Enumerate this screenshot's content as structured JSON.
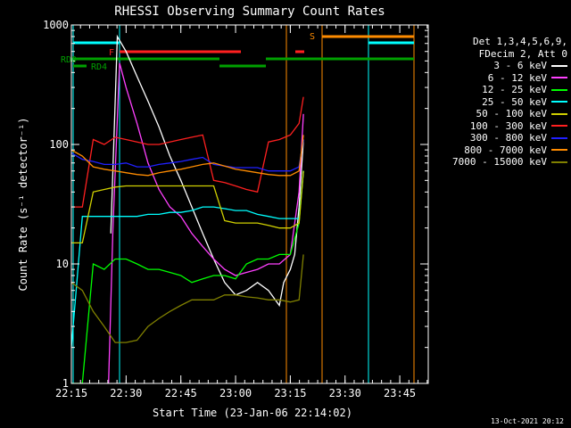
{
  "footer": {
    "date": "13-Oct-2021 20:12"
  },
  "legend": {
    "line1": "Det 1,3,4,5,6,9,",
    "line2": "FDecim 2, Att 0"
  },
  "chart_data": {
    "type": "line",
    "title": "RHESSI Observing Summary Count Rates",
    "xlabel": "Start Time (23-Jan-06 22:14:02)",
    "ylabel": "Count Rate (s⁻¹ detector⁻¹)",
    "yscale": "log",
    "ylim": [
      1,
      1000
    ],
    "xlim_minutes": [
      22.25,
      23.88
    ],
    "x_ticks": [
      {
        "label": "22:15",
        "t": 22.25
      },
      {
        "label": "22:30",
        "t": 22.5
      },
      {
        "label": "22:45",
        "t": 22.75
      },
      {
        "label": "23:00",
        "t": 23.0
      },
      {
        "label": "23:15",
        "t": 23.25
      },
      {
        "label": "23:30",
        "t": 23.5
      },
      {
        "label": "23:45",
        "t": 23.75
      }
    ],
    "y_ticks": [
      {
        "label": "1",
        "v": 1
      },
      {
        "label": "10",
        "v": 10
      },
      {
        "label": "100",
        "v": 100
      },
      {
        "label": "1000",
        "v": 1000
      }
    ],
    "flag_labels": [
      {
        "text": "F",
        "color": "#ff2020"
      },
      {
        "text": "S",
        "color": "#ff8c00"
      },
      {
        "text": "RD0",
        "color": "#00a000"
      },
      {
        "text": "RD4",
        "color": "#00a000"
      }
    ],
    "series": [
      {
        "name": "3 - 6 keV",
        "color": "#ffffff",
        "t": [
          22.43,
          22.46,
          22.5,
          22.55,
          22.6,
          22.65,
          22.7,
          22.75,
          22.8,
          22.85,
          22.9,
          22.95,
          23.0,
          23.05,
          23.1,
          23.15,
          23.2,
          23.22,
          23.25,
          23.27,
          23.29,
          23.31
        ],
        "v": [
          18,
          800,
          600,
          370,
          230,
          140,
          80,
          50,
          30,
          18,
          11,
          7,
          5.5,
          6,
          7,
          6,
          4.5,
          7,
          9,
          12,
          30,
          110
        ]
      },
      {
        "name": "6 - 12 keV",
        "color": "#ff40ff",
        "t": [
          22.42,
          22.44,
          22.47,
          22.5,
          22.55,
          22.6,
          22.65,
          22.7,
          22.75,
          22.8,
          22.85,
          22.9,
          22.95,
          23.0,
          23.05,
          23.1,
          23.15,
          23.2,
          23.25,
          23.29,
          23.31
        ],
        "v": [
          1,
          20,
          480,
          300,
          150,
          70,
          42,
          30,
          25,
          18,
          14,
          11,
          9,
          8,
          8.5,
          9,
          10,
          10,
          12,
          40,
          180
        ]
      },
      {
        "name": "12 - 25 keV",
        "color": "#00ff00",
        "t": [
          22.25,
          22.3,
          22.35,
          22.4,
          22.45,
          22.5,
          22.55,
          22.6,
          22.65,
          22.7,
          22.75,
          22.8,
          22.85,
          22.9,
          22.95,
          23.0,
          23.05,
          23.1,
          23.15,
          23.2,
          23.25,
          23.29,
          23.31
        ],
        "v": [
          1,
          1,
          10,
          9,
          11,
          11,
          10,
          9,
          9,
          8.5,
          8,
          7,
          7.5,
          8,
          8,
          7.5,
          10,
          11,
          11,
          12,
          12,
          22,
          60
        ]
      },
      {
        "name": "25 - 50 keV",
        "color": "#00ffff",
        "t": [
          22.25,
          22.3,
          22.35,
          22.4,
          22.45,
          22.5,
          22.55,
          22.6,
          22.65,
          22.7,
          22.75,
          22.8,
          22.85,
          22.9,
          22.95,
          23.0,
          23.05,
          23.1,
          23.15,
          23.2,
          23.25,
          23.29,
          23.31
        ],
        "v": [
          2,
          25,
          25,
          25,
          25,
          25,
          25,
          26,
          26,
          27,
          27,
          28,
          30,
          30,
          29,
          28,
          28,
          26,
          25,
          24,
          24,
          24,
          60
        ]
      },
      {
        "name": "50 - 100 keV",
        "color": "#d0d000",
        "t": [
          22.25,
          22.3,
          22.35,
          22.4,
          22.45,
          22.5,
          22.55,
          22.6,
          22.65,
          22.7,
          22.75,
          22.8,
          22.85,
          22.9,
          22.95,
          23.0,
          23.05,
          23.1,
          23.15,
          23.2,
          23.25,
          23.29,
          23.31
        ],
        "v": [
          15,
          15,
          40,
          42,
          44,
          45,
          45,
          45,
          45,
          45,
          45,
          45,
          45,
          45,
          23,
          22,
          22,
          22,
          21,
          20,
          20,
          22,
          60
        ]
      },
      {
        "name": "100 - 300 keV",
        "color": "#ff2020",
        "t": [
          22.25,
          22.3,
          22.35,
          22.4,
          22.45,
          22.5,
          22.55,
          22.6,
          22.65,
          22.7,
          22.75,
          22.8,
          22.85,
          22.9,
          22.95,
          23.0,
          23.05,
          23.1,
          23.15,
          23.2,
          23.25,
          23.29,
          23.31
        ],
        "v": [
          30,
          30,
          110,
          100,
          115,
          110,
          105,
          100,
          100,
          105,
          110,
          115,
          120,
          50,
          48,
          45,
          42,
          40,
          105,
          110,
          120,
          150,
          250
        ]
      },
      {
        "name": "300 - 800 keV",
        "color": "#2020ff",
        "t": [
          22.25,
          22.3,
          22.35,
          22.4,
          22.45,
          22.5,
          22.55,
          22.6,
          22.65,
          22.7,
          22.75,
          22.8,
          22.85,
          22.9,
          22.95,
          23.0,
          23.05,
          23.1,
          23.15,
          23.2,
          23.25,
          23.29,
          23.31
        ],
        "v": [
          85,
          75,
          72,
          68,
          68,
          70,
          65,
          65,
          68,
          70,
          72,
          75,
          78,
          68,
          66,
          64,
          64,
          64,
          60,
          60,
          60,
          65,
          110
        ]
      },
      {
        "name": "800 - 7000 keV",
        "color": "#ff8c00",
        "t": [
          22.25,
          22.3,
          22.35,
          22.4,
          22.45,
          22.5,
          22.55,
          22.6,
          22.65,
          22.7,
          22.75,
          22.8,
          22.85,
          22.9,
          22.95,
          23.0,
          23.05,
          23.1,
          23.15,
          23.2,
          23.25,
          23.29,
          23.31
        ],
        "v": [
          90,
          80,
          65,
          62,
          60,
          58,
          56,
          55,
          58,
          60,
          62,
          65,
          68,
          70,
          66,
          62,
          60,
          58,
          56,
          55,
          55,
          60,
          120
        ]
      },
      {
        "name": "7000 - 15000 keV",
        "color": "#808000",
        "t": [
          22.25,
          22.3,
          22.35,
          22.4,
          22.45,
          22.5,
          22.55,
          22.6,
          22.65,
          22.7,
          22.75,
          22.8,
          22.85,
          22.9,
          22.95,
          23.0,
          23.05,
          23.1,
          23.15,
          23.2,
          23.25,
          23.29,
          23.31
        ],
        "v": [
          7,
          6,
          4,
          3,
          2.2,
          2.2,
          2.3,
          3,
          3.5,
          4,
          4.5,
          5,
          5,
          5,
          5.5,
          5.5,
          5.3,
          5.2,
          5,
          5,
          4.8,
          5,
          12
        ]
      }
    ]
  }
}
